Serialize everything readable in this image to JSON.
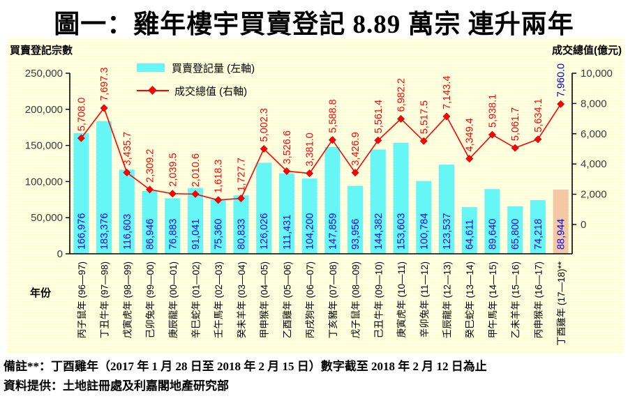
{
  "title": "圖一：雞年樓宇買賣登記 8.89 萬宗  連升兩年",
  "left_axis_title": "買賣登記宗數",
  "right_axis_title": "成交總值(億元)",
  "year_axis_label": "年份",
  "legend": {
    "bar_label": "買賣登記量 (左軸)",
    "line_label": "成交總值 (右軸)"
  },
  "notes": {
    "line1": "備註**：丁酉雞年（2017 年 1 月 28 日至 2018 年 2 月 15 日）數字截至 2018 年 2 月 12 日為止",
    "line2": "資料提供：土地註冊處及利嘉閣地產研究部"
  },
  "colors": {
    "bar": "#66F6F6",
    "bar_highlight": "#F4C8A2",
    "line": "#FF0000",
    "bar_value_label": "#0000FF",
    "line_value_label": "#FF0000",
    "line_value_label_highlight": "#0000CC",
    "axis": "#000000",
    "tick_label": "#3A3A3A",
    "category_label": "#000000"
  },
  "chart_data": {
    "type": "bar",
    "subtype": "bar+line dual axis",
    "categories": [
      "丙子鼠年 (96—97)",
      "丁丑牛年 (97—98)",
      "戊寅虎年 (98—99)",
      "己卯兔年 (99—00)",
      "庚辰龍年 (00—01)",
      "辛巳蛇年 (01—02)",
      "壬午馬年 (02—03)",
      "癸未羊年 (03—04)",
      "甲申猴年 (04—05)",
      "乙酉雞年 (05—06)",
      "丙戌狗年 (06—07)",
      "丁亥豬年 (07—08)",
      "戊子鼠年 (08—09)",
      "己丑牛年 (09—10)",
      "庚寅虎年 (10—11)",
      "辛卯兔年 (11—12)",
      "壬辰龍年 (12—13)",
      "癸巳蛇年 (13—14)",
      "甲午馬年 (14—15)",
      "乙未羊年 (15—16)",
      "丙申猴年 (16—17)",
      "丁酉雞年 (17—18)**"
    ],
    "series": [
      {
        "name": "買賣登記量 (左軸)",
        "type": "bar",
        "axis": "left",
        "values": [
          166976,
          183376,
          116603,
          86946,
          76883,
          91041,
          75360,
          80833,
          126026,
          111431,
          104200,
          147859,
          93956,
          144382,
          153603,
          100784,
          123537,
          64611,
          89640,
          65800,
          74218,
          88944
        ],
        "labels": [
          "166,976",
          "183,376",
          "116,603",
          "86,946",
          "76,883",
          "91,041",
          "75,360",
          "80,833",
          "126,026",
          "111,431",
          "104,200",
          "147,859",
          "93,956",
          "144,382",
          "153,603",
          "100,784",
          "123,537",
          "64,611",
          "89,640",
          "65,800",
          "74,218",
          "88,944"
        ]
      },
      {
        "name": "成交總值 (右軸)",
        "type": "line",
        "axis": "right",
        "values": [
          5708.0,
          7697.3,
          3435.7,
          2309.2,
          2039.5,
          2010.6,
          1618.3,
          1727.7,
          5002.3,
          3526.6,
          3381.0,
          5588.8,
          3426.9,
          5561.4,
          6982.2,
          5517.5,
          7143.4,
          4349.4,
          5938.1,
          5061.7,
          5634.1,
          7960.0
        ],
        "labels": [
          "5,708.0",
          "7,697.3",
          "3,435.7",
          "2,309.2",
          "2,039.5",
          "2,010.6",
          "1,618.3",
          "1,727.7",
          "5,002.3",
          "3,526.6",
          "3,381.0",
          "5,588.8",
          "3,426.9",
          "5,561.4",
          "6,982.2",
          "5,517.5",
          "7,143.4",
          "4,349.4",
          "5,938.1",
          "5,061.7",
          "5,634.1",
          "7,960.0"
        ]
      }
    ],
    "left_axis": {
      "label": "買賣登記宗數",
      "range": [
        0,
        250000
      ],
      "tick_step": 50000,
      "tick_labels": [
        "250,000",
        "200,000",
        "150,000",
        "100,000",
        "50,000",
        "0"
      ]
    },
    "right_axis": {
      "label": "成交總值(億元)",
      "range": [
        0,
        10000
      ],
      "tick_step": 2000,
      "tick_labels": [
        "10,000",
        "8,000",
        "6,000",
        "4,000",
        "2,000",
        "0"
      ]
    },
    "xlabel": "年份",
    "highlight_last_index": 21,
    "legend_position": "top-left-inside",
    "grid": false
  }
}
